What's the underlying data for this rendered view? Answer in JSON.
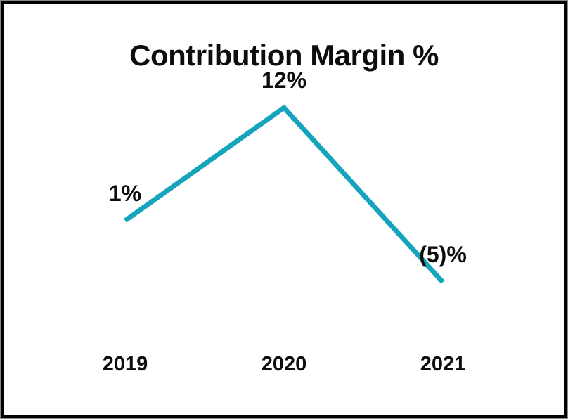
{
  "chart_data": {
    "type": "line",
    "title": "Contribution Margin %",
    "categories": [
      "2019",
      "2020",
      "2021"
    ],
    "series": [
      {
        "name": "Contribution Margin %",
        "values": [
          1,
          12,
          -5
        ]
      }
    ],
    "data_labels": [
      "1%",
      "12%",
      "(5)%"
    ],
    "line_color": "#16A4BC",
    "text_color": "#0d0d0d",
    "background_color": "#ffffff",
    "border_color": "#000000",
    "ylim": [
      -8,
      16
    ],
    "xlabel": "",
    "ylabel": "",
    "grid": false,
    "legend": false,
    "axes": "hidden"
  }
}
